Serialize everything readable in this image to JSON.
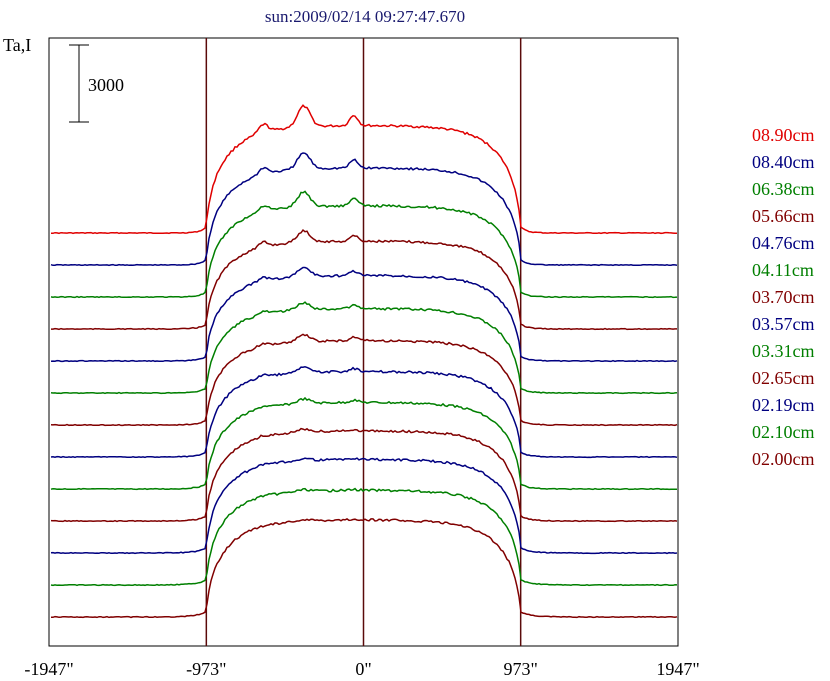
{
  "chart_data": {
    "type": "line",
    "title": "sun:2009/02/14 09:27:47.670",
    "ylabel": "Ta,I",
    "scale_bar_label": "3000",
    "x_unit": "arcsec",
    "xlim": [
      -1947,
      1947
    ],
    "x_ticks": [
      -1947,
      -973,
      0,
      973,
      1947
    ],
    "x_tick_labels": [
      "-1947\"",
      "-973\"",
      "0\"",
      "973\"",
      "1947\""
    ],
    "vertical_reference_lines": [
      -973,
      0,
      973
    ],
    "legend_position": "right",
    "series": [
      {
        "name": "08.90cm",
        "color": "#e00000",
        "baseline": 0,
        "peak": 4650,
        "bump": 900
      },
      {
        "name": "08.40cm",
        "color": "#000080",
        "baseline": 0,
        "peak": 4200,
        "bump": 700
      },
      {
        "name": "06.38cm",
        "color": "#007f00",
        "baseline": 0,
        "peak": 3950,
        "bump": 650
      },
      {
        "name": "05.66cm",
        "color": "#800000",
        "baseline": 0,
        "peak": 3800,
        "bump": 500
      },
      {
        "name": "04.76cm",
        "color": "#000080",
        "baseline": 0,
        "peak": 3700,
        "bump": 400
      },
      {
        "name": "04.11cm",
        "color": "#007f00",
        "baseline": 0,
        "peak": 3650,
        "bump": 300
      },
      {
        "name": "03.70cm",
        "color": "#800000",
        "baseline": 0,
        "peak": 3650,
        "bump": 300
      },
      {
        "name": "03.57cm",
        "color": "#000080",
        "baseline": 0,
        "peak": 3700,
        "bump": 250
      },
      {
        "name": "03.31cm",
        "color": "#007f00",
        "baseline": 0,
        "peak": 3750,
        "bump": 200
      },
      {
        "name": "02.65cm",
        "color": "#800000",
        "baseline": 0,
        "peak": 3900,
        "bump": 120
      },
      {
        "name": "02.19cm",
        "color": "#000080",
        "baseline": 0,
        "peak": 4050,
        "bump": 100
      },
      {
        "name": "02.10cm",
        "color": "#007f00",
        "baseline": 0,
        "peak": 4100,
        "bump": 80
      },
      {
        "name": "02.00cm",
        "color": "#800000",
        "baseline": 0,
        "peak": 4200,
        "bump": 60
      }
    ]
  }
}
